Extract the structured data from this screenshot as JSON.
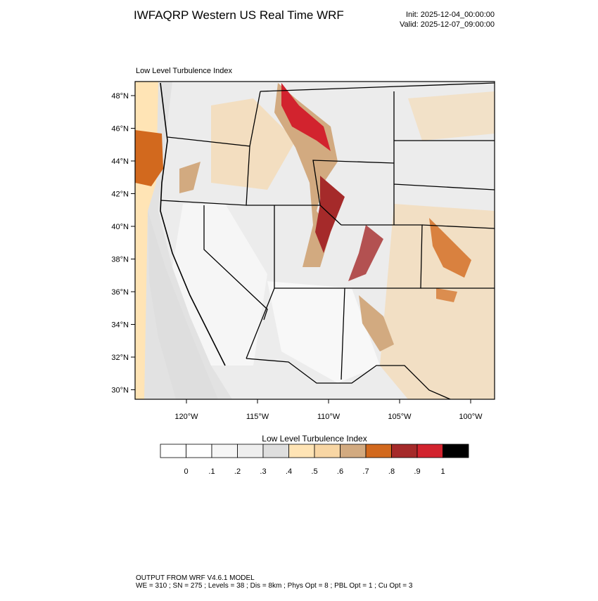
{
  "header": {
    "title": "IWFAQRP Western US Real Time WRF",
    "init": "Init: 2025-12-04_00:00:00",
    "valid": "Valid: 2025-12-07_09:00:00"
  },
  "map": {
    "subtitle": "Low Level Turbulence Index",
    "lat_labels": [
      "48°N",
      "46°N",
      "44°N",
      "42°N",
      "40°N",
      "38°N",
      "36°N",
      "34°N",
      "32°N",
      "30°N"
    ],
    "lon_labels": [
      "120°W",
      "115°W",
      "110°W",
      "105°W",
      "100°W"
    ]
  },
  "colorbar": {
    "title": "Low Level Turbulence Index",
    "colors": [
      "#ffffff",
      "#f6f6f6",
      "#eeeeee",
      "#dedede",
      "#ffe4b5",
      "#f8d6a4",
      "#d2aa80",
      "#d2691e",
      "#a52a2a",
      "#d2232e",
      "#000000"
    ],
    "labels": [
      "0",
      ".1",
      ".2",
      ".3",
      ".4",
      ".5",
      ".6",
      ".7",
      ".8",
      ".9",
      "1"
    ]
  },
  "footer": {
    "line1": "OUTPUT FROM WRF V4.6.1 MODEL",
    "line2": "WE = 310 ; SN = 275 ; Levels = 38 ; Dis = 8km ; Phys Opt = 8 ; PBL Opt = 1 ; Cu Opt = 3"
  }
}
